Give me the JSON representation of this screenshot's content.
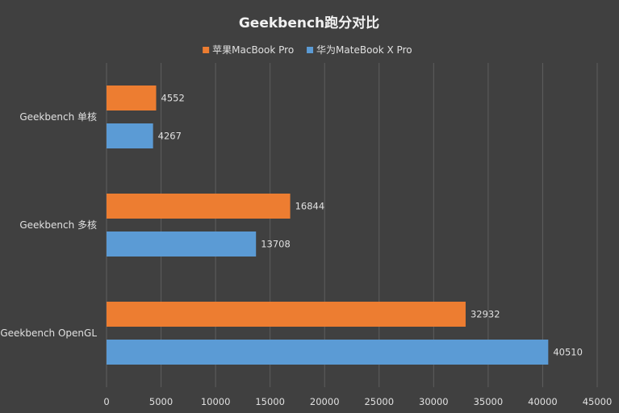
{
  "chart_data": {
    "type": "bar",
    "orientation": "horizontal",
    "title": "Geekbench跑分对比",
    "categories": [
      "Geekbench 单核",
      "Geekbench 多核",
      "Geekbench OpenGL"
    ],
    "series": [
      {
        "name": "苹果MacBook Pro",
        "color": "#ED7D31",
        "values": [
          4552,
          16844,
          32932
        ]
      },
      {
        "name": "华为MateBook X Pro",
        "color": "#5B9BD5",
        "values": [
          4267,
          13708,
          40510
        ]
      }
    ],
    "xlim": [
      0,
      45000
    ],
    "xticks": [
      0,
      5000,
      10000,
      15000,
      20000,
      25000,
      30000,
      35000,
      40000,
      45000
    ],
    "grid": true,
    "legend_position": "top",
    "data_labels": true,
    "colors": {
      "background": "#404040",
      "grid": "#5e5e5e",
      "text": "#e0e0e0",
      "title": "#f2f2f2"
    }
  }
}
